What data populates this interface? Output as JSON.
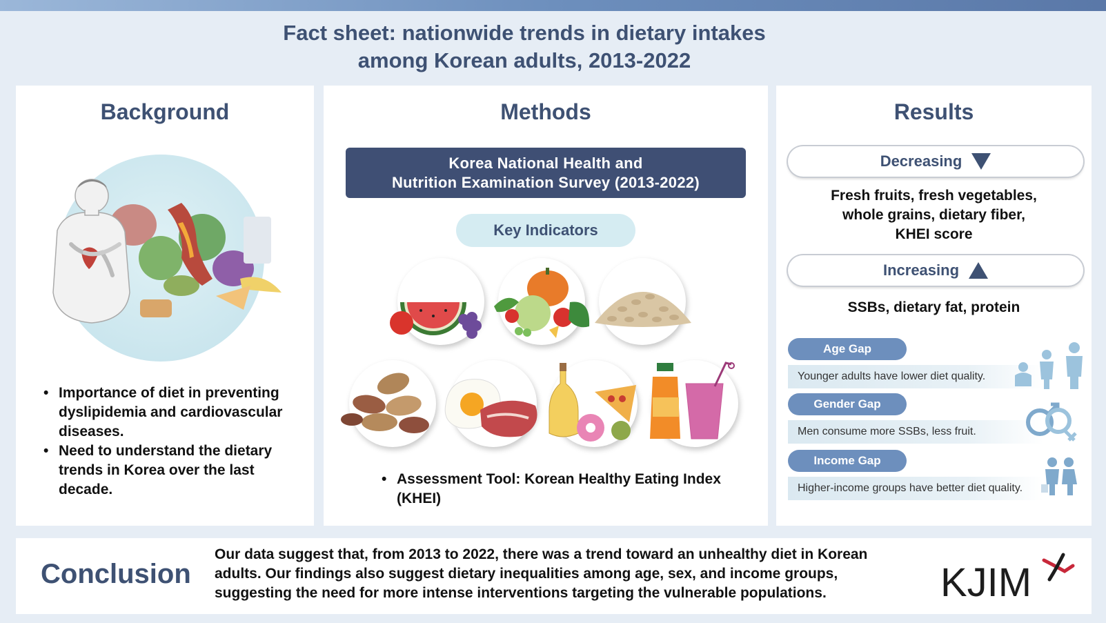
{
  "title": "Fact sheet: nationwide trends in dietary intakes among Korean adults, 2013-2022",
  "background": {
    "heading": "Background",
    "bullets": [
      "Importance of diet in preventing dyslipidemia and cardiovascular diseases.",
      "Need to understand the dietary trends in Korea over the last decade."
    ]
  },
  "methods": {
    "heading": "Methods",
    "survey_line1": "Korea National Health and",
    "survey_line2": "Nutrition Examination Survey (2013-2022)",
    "key_indicators": "Key Indicators",
    "food_icons": [
      "fruit-icon",
      "vegetables-icon",
      "grains-icon",
      "nuts-icon",
      "egg-meat-icon",
      "fat-oil-icon",
      "ssb-drink-icon"
    ],
    "bullets": [
      "Assessment Tool: Korean Healthy Eating Index (KHEI)"
    ]
  },
  "results": {
    "heading": "Results",
    "decreasing_label": "Decreasing",
    "decreasing_lines": [
      "Fresh fruits, fresh vegetables,",
      "whole grains, dietary fiber,",
      "KHEI score"
    ],
    "increasing_label": "Increasing",
    "increasing_text": "SSBs, dietary fat, protein",
    "gaps": [
      {
        "label": "Age Gap",
        "text": "Younger adults have lower diet quality.",
        "icon": "age-group-icon"
      },
      {
        "label": "Gender Gap",
        "text": "Men consume more SSBs, less fruit.",
        "icon": "gender-symbols-icon"
      },
      {
        "label": "Income Gap",
        "text": "Higher-income groups have better diet quality.",
        "icon": "income-family-icon"
      }
    ],
    "accent_color": "#3e5173",
    "gap_color": "#6d8fbd"
  },
  "conclusion": {
    "heading": "Conclusion",
    "lines": [
      "Our data suggest that, from 2013 to 2022, there was a trend toward an unhealthy diet in Korean",
      "adults. Our findings also suggest dietary inequalities among age, sex, and income groups,",
      "suggesting the need for more intense interventions targeting the vulnerable populations."
    ]
  },
  "logo": {
    "text": "KJIM"
  }
}
